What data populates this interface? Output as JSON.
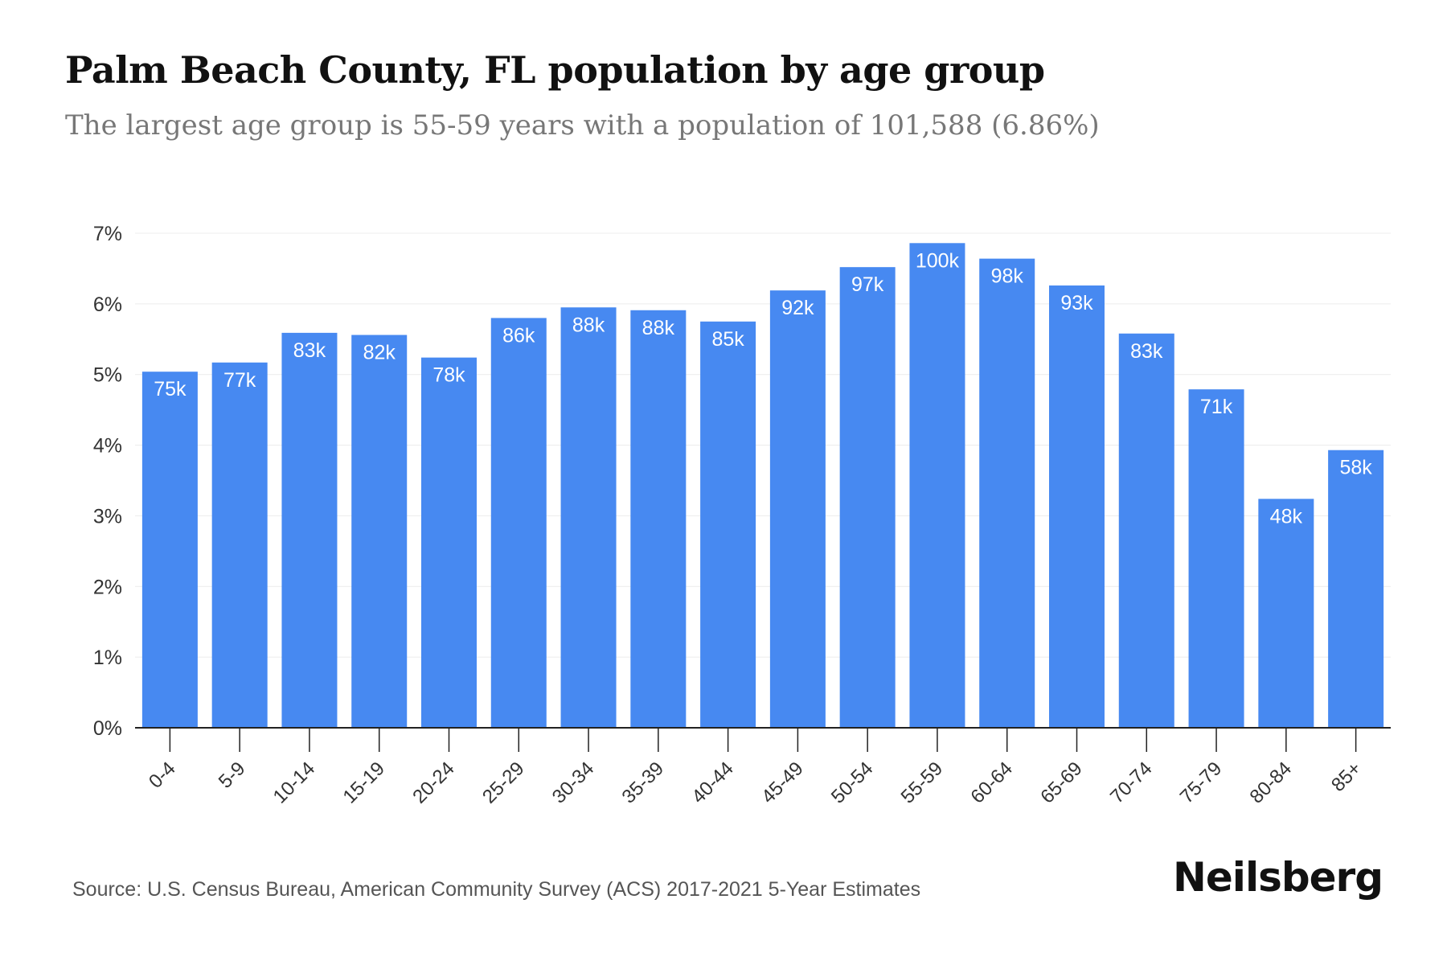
{
  "header": {
    "title": "Palm Beach County, FL population by age group",
    "subtitle": "The largest age group is 55-59 years with a population of 101,588 (6.86%)"
  },
  "footer": {
    "source": "Source: U.S. Census Bureau, American Community Survey (ACS) 2017-2021 5-Year Estimates",
    "brand": "Neilsberg"
  },
  "colors": {
    "bar": "#4789F1",
    "grid": "#ECECEC",
    "axis": "#222222",
    "tick_label": "#333333",
    "bar_label": "#FFFFFF"
  },
  "chart_data": {
    "type": "bar",
    "categories": [
      "0-4",
      "5-9",
      "10-14",
      "15-19",
      "20-24",
      "25-29",
      "30-34",
      "35-39",
      "40-44",
      "45-49",
      "50-54",
      "55-59",
      "60-64",
      "65-69",
      "70-74",
      "75-79",
      "80-84",
      "85+"
    ],
    "values": [
      5.04,
      5.17,
      5.59,
      5.56,
      5.24,
      5.8,
      5.95,
      5.91,
      5.75,
      6.19,
      6.52,
      6.86,
      6.64,
      6.26,
      5.58,
      4.79,
      3.24,
      3.93
    ],
    "labels": [
      "75k",
      "77k",
      "83k",
      "82k",
      "78k",
      "86k",
      "88k",
      "88k",
      "85k",
      "92k",
      "97k",
      "100k",
      "98k",
      "93k",
      "83k",
      "71k",
      "48k",
      "58k"
    ],
    "yticks": [
      "0%",
      "1%",
      "2%",
      "3%",
      "4%",
      "5%",
      "6%",
      "7%"
    ],
    "ylim": [
      0,
      7
    ],
    "y_unit": "%",
    "grid": true,
    "legend": "none"
  }
}
